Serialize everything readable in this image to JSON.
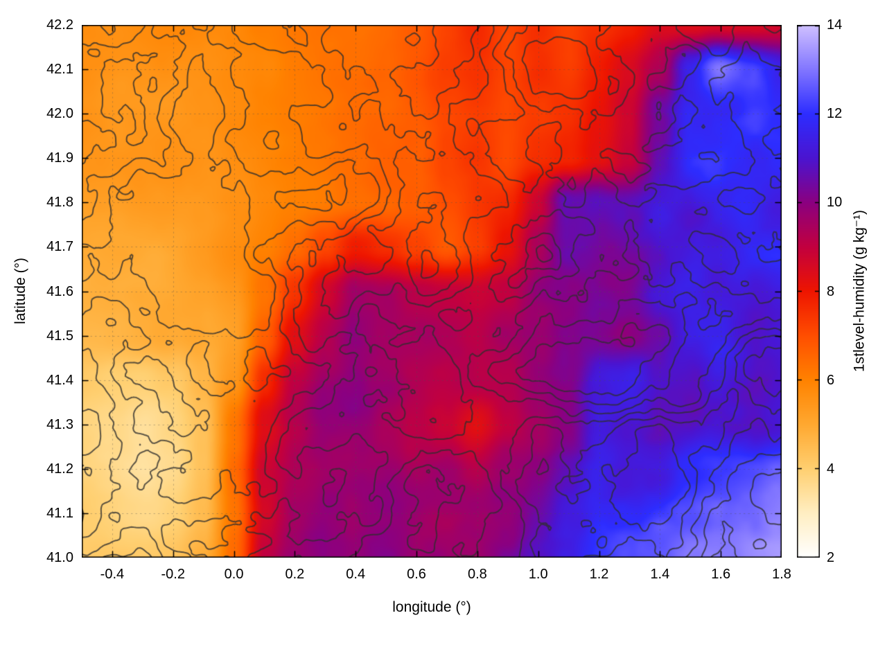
{
  "chart_data": {
    "type": "heatmap",
    "title": "",
    "xlabel": "longitude (°)",
    "ylabel": "latitude (°)",
    "colorbar_label": "1stlevel-humidity (g kg⁻¹)",
    "xlim": [
      -0.5,
      1.8
    ],
    "ylim": [
      41.0,
      42.2
    ],
    "xticks": [
      -0.4,
      -0.2,
      0.0,
      0.2,
      0.4,
      0.6,
      0.8,
      1.0,
      1.2,
      1.4,
      1.6,
      1.8
    ],
    "xtick_labels": [
      "-0.4",
      "-0.2",
      "0.0",
      "0.2",
      "0.4",
      "0.6",
      "0.8",
      "1.0",
      "1.2",
      "1.4",
      "1.6",
      "1.8"
    ],
    "yticks": [
      41.0,
      41.1,
      41.2,
      41.3,
      41.4,
      41.5,
      41.6,
      41.7,
      41.8,
      41.9,
      42.0,
      42.1,
      42.2
    ],
    "ytick_labels": [
      "41.0",
      "41.1",
      "41.2",
      "41.3",
      "41.4",
      "41.5",
      "41.6",
      "41.7",
      "41.8",
      "41.9",
      "42.0",
      "42.1",
      "42.2"
    ],
    "colorbar": {
      "min": 2,
      "max": 14,
      "ticks": [
        2,
        4,
        6,
        8,
        10,
        12,
        14
      ],
      "tick_labels": [
        "2",
        "4",
        "6",
        "8",
        "10",
        "12",
        "14"
      ]
    },
    "palette": [
      [
        2,
        "#ffffff"
      ],
      [
        3,
        "#ffeec2"
      ],
      [
        4,
        "#ffcf70"
      ],
      [
        5,
        "#ffa830"
      ],
      [
        6,
        "#ff8200"
      ],
      [
        7,
        "#ff4e00"
      ],
      [
        8,
        "#ee1500"
      ],
      [
        9,
        "#c2003f"
      ],
      [
        10,
        "#8b0080"
      ],
      [
        11,
        "#4b14d0"
      ],
      [
        12,
        "#2d2dff"
      ],
      [
        13,
        "#8276ff"
      ],
      [
        14,
        "#cfc0ff"
      ]
    ],
    "contour_color": "#2e2e2e",
    "grid_values": {
      "lon_start": -0.5,
      "lon_step": 0.1,
      "lat_start": 42.2,
      "lat_step": -0.1,
      "values": [
        [
          5.6,
          5.6,
          5.6,
          5.7,
          5.8,
          6.0,
          6.2,
          6.3,
          6.4,
          6.4,
          6.5,
          6.8,
          7.2,
          7.6,
          7.2,
          7.6,
          7.2,
          7.6,
          8.0,
          8.4,
          8.2,
          8.4,
          8.6,
          8.8
        ],
        [
          5.5,
          5.5,
          5.5,
          5.6,
          5.7,
          5.9,
          6.0,
          6.2,
          6.3,
          6.3,
          6.5,
          6.8,
          7.2,
          7.4,
          7.0,
          7.4,
          7.2,
          7.8,
          8.4,
          9.5,
          11.5,
          13.0,
          12.5,
          11.5
        ],
        [
          5.5,
          5.4,
          5.5,
          5.5,
          5.6,
          5.8,
          6.0,
          6.1,
          6.2,
          6.3,
          6.4,
          6.6,
          7.0,
          7.2,
          6.9,
          7.2,
          7.4,
          8.0,
          8.6,
          10.5,
          12.0,
          12.0,
          12.3,
          12.0
        ],
        [
          5.4,
          5.4,
          5.4,
          5.5,
          5.5,
          5.7,
          5.9,
          6.0,
          6.1,
          6.2,
          6.4,
          6.6,
          7.2,
          7.4,
          7.0,
          7.4,
          7.6,
          8.2,
          9.0,
          11.0,
          11.8,
          12.0,
          11.8,
          12.0
        ],
        [
          5.2,
          5.2,
          5.3,
          5.3,
          5.4,
          5.6,
          5.8,
          5.9,
          6.0,
          6.2,
          6.4,
          6.6,
          7.0,
          7.4,
          7.6,
          8.6,
          10.5,
          11.0,
          11.0,
          11.4,
          11.0,
          11.4,
          11.8,
          11.5
        ],
        [
          5.0,
          5.1,
          5.1,
          5.2,
          5.3,
          5.5,
          5.8,
          6.2,
          7.0,
          7.9,
          7.6,
          7.2,
          6.7,
          7.2,
          8.0,
          9.2,
          10.4,
          10.6,
          10.9,
          11.3,
          11.0,
          11.0,
          11.3,
          11.4
        ],
        [
          4.8,
          4.9,
          4.9,
          5.0,
          5.1,
          5.4,
          6.2,
          7.4,
          8.6,
          9.4,
          9.4,
          9.0,
          8.8,
          8.7,
          9.0,
          9.6,
          10.0,
          10.4,
          10.5,
          11.0,
          11.4,
          11.0,
          11.0,
          11.4
        ],
        [
          4.5,
          4.6,
          4.7,
          4.8,
          5.0,
          5.4,
          6.8,
          8.4,
          9.4,
          9.8,
          9.6,
          9.4,
          9.2,
          9.0,
          9.4,
          9.6,
          10.0,
          10.2,
          10.0,
          10.4,
          11.0,
          11.4,
          11.0,
          11.4
        ],
        [
          4.2,
          4.0,
          3.9,
          4.1,
          4.7,
          5.6,
          7.6,
          8.9,
          9.5,
          9.9,
          9.6,
          9.2,
          9.0,
          9.0,
          9.2,
          9.6,
          10.0,
          11.2,
          11.4,
          10.6,
          10.6,
          11.0,
          11.0,
          11.4
        ],
        [
          4.0,
          3.7,
          3.5,
          3.8,
          4.4,
          6.2,
          8.3,
          9.0,
          9.5,
          9.6,
          9.2,
          9.0,
          8.7,
          8.2,
          8.9,
          9.4,
          10.0,
          11.4,
          11.0,
          10.6,
          10.6,
          11.0,
          11.2,
          11.5
        ],
        [
          3.8,
          3.6,
          3.5,
          3.7,
          4.4,
          6.4,
          8.8,
          9.4,
          9.6,
          9.6,
          9.4,
          9.2,
          9.4,
          9.0,
          9.5,
          10.0,
          10.8,
          11.8,
          11.5,
          11.5,
          12.0,
          12.4,
          12.5,
          12.8
        ],
        [
          3.9,
          3.8,
          3.8,
          4.0,
          4.5,
          6.2,
          8.6,
          9.6,
          9.9,
          9.6,
          9.5,
          9.5,
          9.4,
          9.5,
          9.9,
          10.4,
          11.3,
          11.9,
          12.0,
          12.3,
          12.5,
          12.8,
          13.0,
          13.3
        ],
        [
          4.0,
          4.1,
          4.2,
          4.4,
          4.9,
          6.5,
          9.0,
          9.7,
          10.0,
          9.7,
          9.9,
          9.6,
          9.9,
          10.0,
          10.4,
          11.0,
          11.6,
          12.1,
          12.4,
          12.6,
          12.9,
          13.1,
          13.4,
          13.5
        ]
      ]
    }
  }
}
